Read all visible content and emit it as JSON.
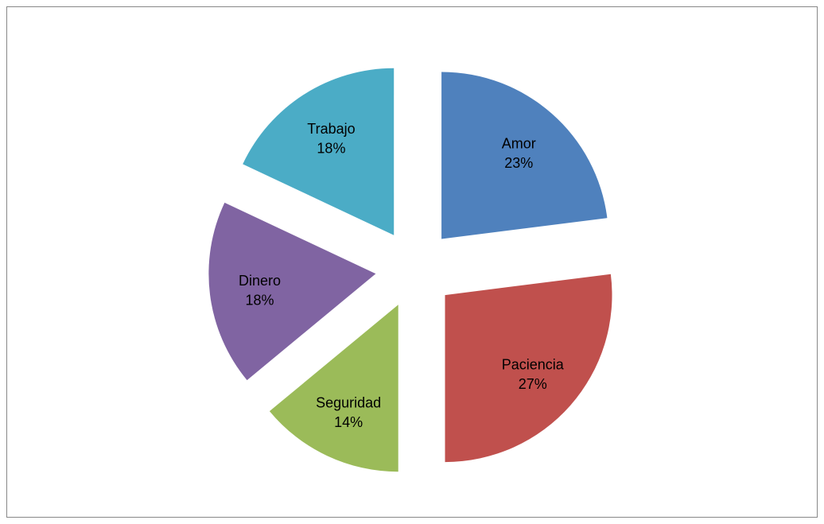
{
  "chart_data": {
    "type": "pie",
    "categories": [
      "Amor",
      "Paciencia",
      "Seguridad",
      "Dinero",
      "Trabajo"
    ],
    "values": [
      23,
      27,
      14,
      18,
      18
    ],
    "value_labels": [
      "23%",
      "27%",
      "14%",
      "18%",
      "18%"
    ],
    "colors": [
      "#4f81bd",
      "#c0504d",
      "#9bbb59",
      "#8064a2",
      "#4bacc6"
    ],
    "exploded": true
  }
}
